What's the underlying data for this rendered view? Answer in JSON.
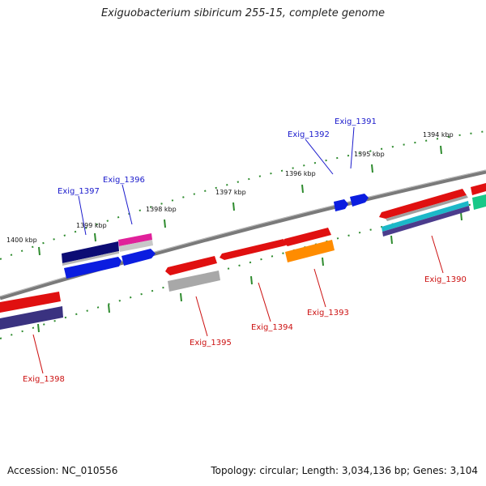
{
  "title": "Exiguobacterium sibiricum 255-15, complete genome",
  "footer": {
    "accession": "Accession: NC_010556",
    "summary": "Topology: circular; Length: 3,034,136 bp; Genes: 3,104"
  },
  "colors": {
    "backbone": "#7a7a7a",
    "tick": "#2e8b2e",
    "label_top": "#1a1acc",
    "label_bottom": "#cc1111"
  },
  "ticks": [
    {
      "label": "1400 kbp"
    },
    {
      "label": "1399 kbp"
    },
    {
      "label": "1398 kbp"
    },
    {
      "label": "1397 kbp"
    },
    {
      "label": "1396 kbp"
    },
    {
      "label": "1395 kbp"
    },
    {
      "label": "1394 kbp"
    }
  ],
  "genes_top": [
    {
      "label": "Exig_1397",
      "color": "blue"
    },
    {
      "label": "Exig_1396",
      "color": "blue"
    },
    {
      "label": "Exig_1392",
      "color": "blue"
    },
    {
      "label": "Exig_1391",
      "color": "blue"
    }
  ],
  "genes_bottom": [
    {
      "label": "Exig_1398",
      "color": "red"
    },
    {
      "label": "Exig_1395",
      "color": "red"
    },
    {
      "label": "Exig_1394",
      "color": "red"
    },
    {
      "label": "Exig_1393",
      "color": "red"
    },
    {
      "label": "Exig_1390",
      "color": "red"
    }
  ]
}
